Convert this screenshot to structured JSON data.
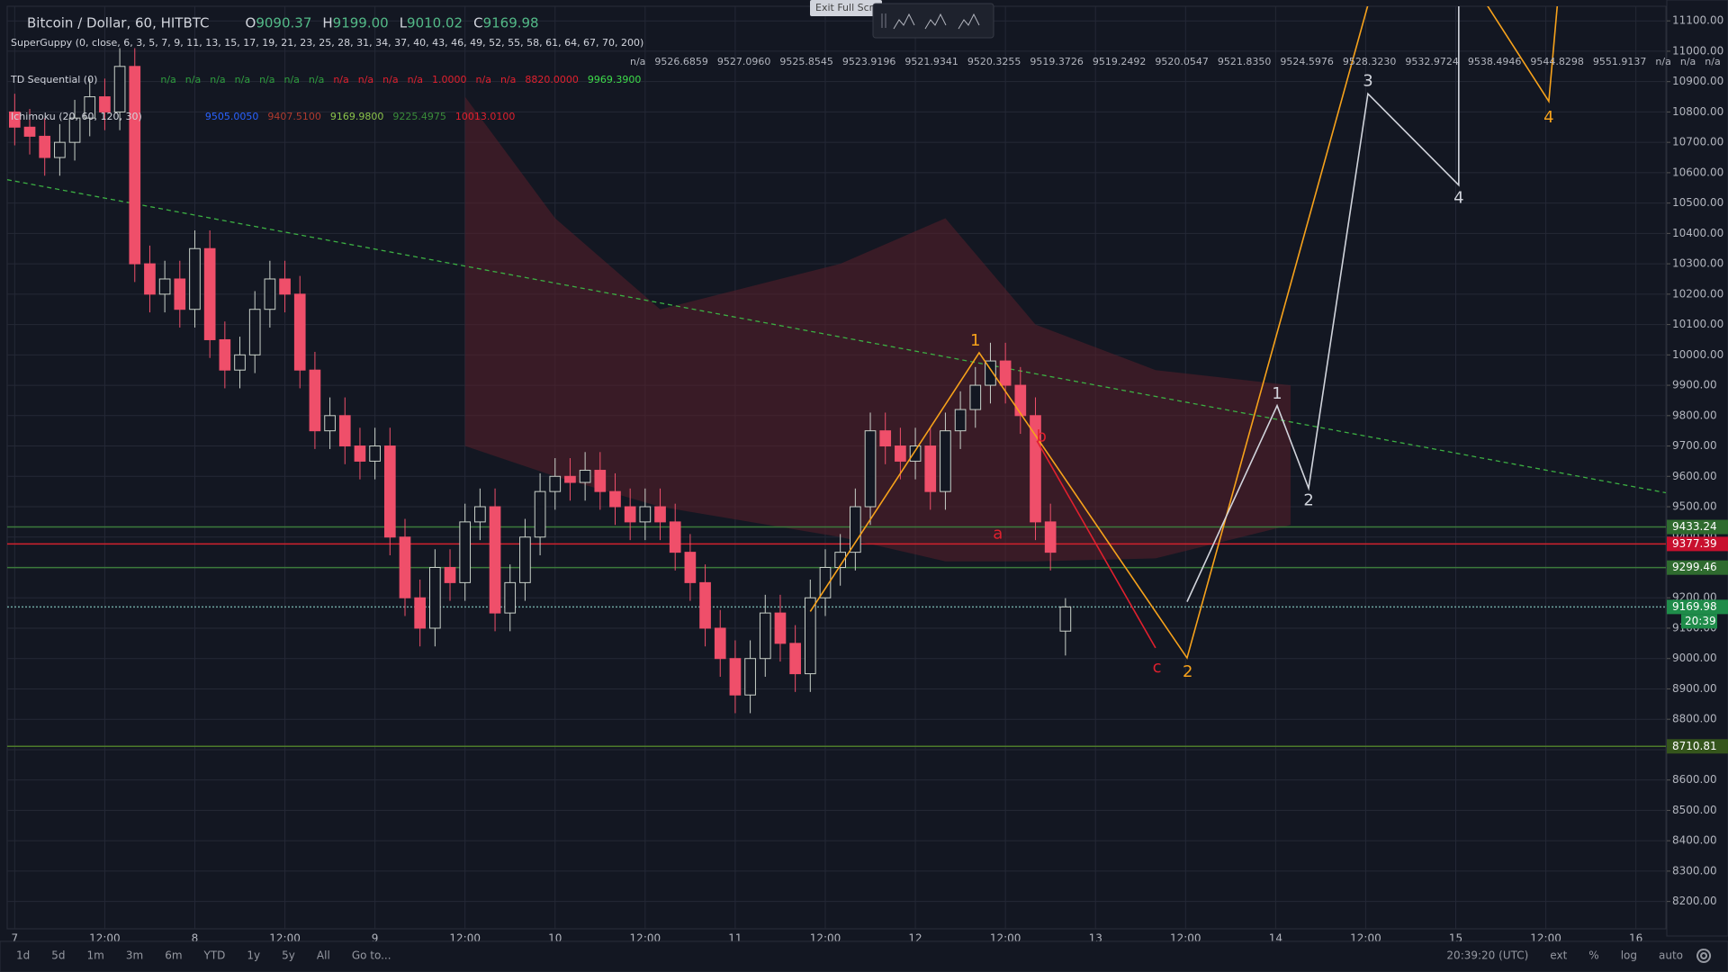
{
  "header": {
    "symbol": "Bitcoin / Dollar, 60, HITBTC",
    "ohlc": [
      {
        "key": "O",
        "value": "9090.37"
      },
      {
        "key": "H",
        "value": "9199.00"
      },
      {
        "key": "L",
        "value": "9010.02"
      },
      {
        "key": "C",
        "value": "9169.98"
      }
    ],
    "tooltip": "Exit Full Scre",
    "indicators": [
      {
        "name": "SuperGuppy (0, close, 6, 3, 5, 7, 9, 11, 13, 15, 17, 19, 21, 23, 25, 28, 31, 34, 37, 40, 43, 46, 49, 52, 55, 58, 61, 64, 67, 70, 200)",
        "color": "#b2b5be",
        "values": [
          "n/a",
          "9526.6859",
          "9527.0960",
          "9525.8545",
          "9523.9196",
          "9521.9341",
          "9520.3255",
          "9519.3726",
          "9519.2492",
          "9520.0547",
          "9521.8350",
          "9524.5976",
          "9528.3230",
          "9532.9724",
          "9538.4946",
          "9544.8298",
          "9551.9137",
          "n/a",
          "n/a",
          "n/a",
          "n/a"
        ]
      },
      {
        "name": "TD Sequential (0)",
        "color": "#2e9e3e",
        "values": [
          "n/a",
          "n/a",
          "n/a",
          "n/a",
          "n/a",
          "n/a",
          "n/a",
          "n/a",
          "n/a",
          "n/a",
          "n/a",
          "1.0000",
          "n/a",
          "n/a",
          "8820.0000",
          "9969.3900"
        ],
        "colors": [
          "#2e9e3e",
          "#2e9e3e",
          "#2e9e3e",
          "#2e9e3e",
          "#2e9e3e",
          "#2e9e3e",
          "#2e9e3e",
          "#e0202e",
          "#e0202e",
          "#e0202e",
          "#e0202e",
          "#e0202e",
          "#e0202e",
          "#e0202e",
          "#e0202e",
          "#3ddc4a"
        ]
      },
      {
        "name": "Ichimoku (20, 60, 120, 30)",
        "color": "#b2b5be",
        "values": [
          "9505.0050",
          "9407.5100",
          "9169.9800",
          "9225.4975",
          "10013.0100"
        ],
        "colors": [
          "#2962ff",
          "#b03a2e",
          "#8bc34a",
          "#3a8c3a",
          "#e0202e"
        ]
      }
    ]
  },
  "chart_data": {
    "type": "candlestick",
    "x": [
      0,
      2,
      4,
      6,
      8,
      10,
      12,
      14,
      16,
      18,
      20,
      22,
      24,
      26,
      28,
      30,
      32,
      34,
      36,
      38,
      40,
      42,
      44,
      46,
      48,
      50,
      52,
      54,
      56,
      58,
      60,
      62,
      64,
      66,
      68,
      70,
      72,
      74,
      76,
      78,
      80,
      82,
      84,
      86,
      88,
      90,
      92,
      94,
      96,
      98,
      100,
      102,
      104,
      106,
      108,
      110,
      112,
      114,
      116,
      118,
      120,
      122,
      124,
      126,
      128,
      130,
      132,
      134,
      136,
      138,
      140
    ],
    "open": [
      10800,
      10750,
      10720,
      10650,
      10700,
      10780,
      10850,
      10800,
      10950,
      10300,
      10200,
      10250,
      10150,
      10350,
      10050,
      9950,
      10000,
      10150,
      10250,
      10200,
      9950,
      9750,
      9800,
      9700,
      9650,
      9700,
      9400,
      9200,
      9100,
      9300,
      9250,
      9450,
      9500,
      9150,
      9250,
      9400,
      9550,
      9600,
      9580,
      9620,
      9550,
      9500,
      9450,
      9500,
      9450,
      9350,
      9250,
      9100,
      9000,
      8880,
      9000,
      9150,
      9050,
      8950,
      9200,
      9300,
      9350,
      9500,
      9750,
      9700,
      9650,
      9700,
      9550,
      9750,
      9820,
      9900,
      9980,
      9900,
      9800,
      9450,
      9090.37
    ],
    "high": [
      10860,
      10810,
      10780,
      10760,
      10840,
      10910,
      10910,
      11010,
      11010,
      10360,
      10310,
      10310,
      10410,
      10410,
      10110,
      10060,
      10210,
      10310,
      10310,
      10260,
      10010,
      9860,
      9860,
      9760,
      9760,
      9760,
      9460,
      9260,
      9360,
      9360,
      9510,
      9560,
      9560,
      9310,
      9460,
      9610,
      9660,
      9660,
      9680,
      9680,
      9610,
      9560,
      9560,
      9560,
      9510,
      9410,
      9310,
      9160,
      9060,
      9060,
      9210,
      9210,
      9110,
      9260,
      9360,
      9410,
      9560,
      9810,
      9810,
      9760,
      9760,
      9760,
      9810,
      9880,
      9960,
      10040,
      10040,
      9960,
      9860,
      9510,
      9199
    ],
    "low": [
      10690,
      10660,
      10590,
      10590,
      10640,
      10720,
      10740,
      10740,
      10240,
      10140,
      10140,
      10090,
      10090,
      9990,
      9890,
      9890,
      9940,
      10090,
      10140,
      9890,
      9690,
      9690,
      9640,
      9590,
      9590,
      9340,
      9140,
      9040,
      9040,
      9190,
      9190,
      9390,
      9090,
      9090,
      9190,
      9340,
      9490,
      9520,
      9520,
      9490,
      9440,
      9390,
      9390,
      9390,
      9290,
      9190,
      9040,
      8940,
      8820,
      8820,
      8940,
      8990,
      8890,
      8890,
      9140,
      9240,
      9290,
      9440,
      9640,
      9590,
      9590,
      9490,
      9490,
      9690,
      9760,
      9840,
      9840,
      9740,
      9390,
      9290,
      9010.02
    ],
    "close": [
      10750,
      10720,
      10650,
      10700,
      10780,
      10850,
      10800,
      10950,
      10300,
      10200,
      10250,
      10150,
      10350,
      10050,
      9950,
      10000,
      10150,
      10250,
      10200,
      9950,
      9750,
      9800,
      9700,
      9650,
      9700,
      9400,
      9200,
      9100,
      9300,
      9250,
      9450,
      9500,
      9150,
      9250,
      9400,
      9550,
      9600,
      9580,
      9620,
      9550,
      9500,
      9450,
      9500,
      9450,
      9350,
      9250,
      9100,
      9000,
      8880,
      9000,
      9150,
      9050,
      8950,
      9200,
      9300,
      9350,
      9500,
      9750,
      9700,
      9650,
      9700,
      9550,
      9750,
      9820,
      9900,
      9980,
      9900,
      9800,
      9450,
      9350,
      9169.98
    ],
    "up_color": "#c9d1c9",
    "down_color": "#ef4f6a",
    "grid": true,
    "grid_color": "#242836",
    "xlim": [
      -1,
      220
    ],
    "ylim": [
      8110,
      11148
    ],
    "xticks": [
      {
        "value": 0,
        "label": "7"
      },
      {
        "value": 12,
        "label": "12:00"
      },
      {
        "value": 24,
        "label": "8"
      },
      {
        "value": 36,
        "label": "12:00"
      },
      {
        "value": 48,
        "label": "9"
      },
      {
        "value": 60,
        "label": "12:00"
      },
      {
        "value": 72,
        "label": "10"
      },
      {
        "value": 84,
        "label": "12:00"
      },
      {
        "value": 96,
        "label": "11"
      },
      {
        "value": 108,
        "label": "12:00"
      },
      {
        "value": 120,
        "label": "12"
      },
      {
        "value": 132,
        "label": "12:00"
      },
      {
        "value": 144,
        "label": "13"
      },
      {
        "value": 156,
        "label": "12:00"
      },
      {
        "value": 168,
        "label": "14"
      },
      {
        "value": 180,
        "label": "12:00"
      },
      {
        "value": 192,
        "label": "15"
      },
      {
        "value": 204,
        "label": "12:00"
      },
      {
        "value": 216,
        "label": "16"
      }
    ],
    "yticks": [
      {
        "value": 8200,
        "label": "8200.00"
      },
      {
        "value": 8300,
        "label": "8300.00"
      },
      {
        "value": 8400,
        "label": "8400.00"
      },
      {
        "value": 8500,
        "label": "8500.00"
      },
      {
        "value": 8600,
        "label": "8600.00"
      },
      {
        "value": 8700,
        "label": "8700.00"
      },
      {
        "value": 8800,
        "label": "8800.00"
      },
      {
        "value": 8900,
        "label": "8900.00"
      },
      {
        "value": 9000,
        "label": "9000.00"
      },
      {
        "value": 9100,
        "label": "9100.00"
      },
      {
        "value": 9200,
        "label": "9200.00"
      },
      {
        "value": 9300,
        "label": "9300.00"
      },
      {
        "value": 9400,
        "label": "9400.00"
      },
      {
        "value": 9500,
        "label": "9500.00"
      },
      {
        "value": 9600,
        "label": "9600.00"
      },
      {
        "value": 9700,
        "label": "9700.00"
      },
      {
        "value": 9800,
        "label": "9800.00"
      },
      {
        "value": 9900,
        "label": "9900.00"
      },
      {
        "value": 10000,
        "label": "10000.00"
      },
      {
        "value": 10100,
        "label": "10100.00"
      },
      {
        "value": 10200,
        "label": "10200.00"
      },
      {
        "value": 10300,
        "label": "10300.00"
      },
      {
        "value": 10400,
        "label": "10400.00"
      },
      {
        "value": 10500,
        "label": "10500.00"
      },
      {
        "value": 10600,
        "label": "10600.00"
      },
      {
        "value": 10700,
        "label": "10700.00"
      },
      {
        "value": 10800,
        "label": "10800.00"
      },
      {
        "value": 10900,
        "label": "10900.00"
      },
      {
        "value": 11000,
        "label": "11000.00"
      },
      {
        "value": 11100,
        "label": "11100.00"
      }
    ],
    "cloud": {
      "color": "#5a1f2a",
      "x": [
        60,
        72,
        86,
        110,
        124,
        136,
        152,
        170
      ],
      "upper": [
        10850,
        10450,
        10150,
        10300,
        10450,
        10100,
        9950,
        9900
      ],
      "lower": [
        9700,
        9600,
        9500,
        9400,
        9320,
        9320,
        9330,
        9440
      ]
    },
    "trendline": {
      "color": "#3cb043",
      "x": [
        -1,
        220
      ],
      "y": [
        10577,
        9546
      ]
    },
    "levels": [
      {
        "value": 9433.24,
        "color": "#2f6b2f",
        "line": "#3c7a3c"
      },
      {
        "value": 9377.39,
        "color": "#c8102e",
        "line": "#d2222d"
      },
      {
        "value": 9299.46,
        "color": "#2f6b2f",
        "line": "#3c7a3c"
      },
      {
        "value": 9169.98,
        "color": "#1f8c4a",
        "line": "#6fa5a0",
        "countdown": "20:39"
      },
      {
        "value": 8710.81,
        "color": "#35551c",
        "line": "#4c7a2a"
      }
    ],
    "drawings": [
      {
        "color": "#f7a21b",
        "x": [
          106,
          128.5,
          156.2,
          180.5,
          null,
          195.7,
          204.4,
          205.6
        ],
        "y": [
          9155,
          10007,
          9002,
          11170,
          null,
          11170,
          10835,
          11170
        ],
        "labels": [
          {
            "text": "1",
            "x": 128,
            "y": 10045
          },
          {
            "text": "2",
            "x": 156.3,
            "y": 8955
          },
          {
            "text": "4",
            "x": 204.4,
            "y": 10780
          }
        ]
      },
      {
        "color": "#d1d4dc",
        "x": [
          156.2,
          168.2,
          172.4,
          180.3,
          192.4,
          192.4
        ],
        "y": [
          9187,
          9833,
          9561,
          10860,
          10559,
          11170
        ],
        "labels": [
          {
            "text": "1",
            "x": 168.2,
            "y": 9870
          },
          {
            "text": "2",
            "x": 172.4,
            "y": 9520
          },
          {
            "text": "3",
            "x": 180.3,
            "y": 10900
          },
          {
            "text": "4",
            "x": 192.4,
            "y": 10515
          }
        ]
      },
      {
        "color": "#e0202e",
        "x": [
          136.2,
          152
        ],
        "y": [
          9717,
          9035
        ],
        "labels": [
          {
            "text": "a",
            "x": 131,
            "y": 9410
          },
          {
            "text": "b",
            "x": 136.8,
            "y": 9730
          },
          {
            "text": "c",
            "x": 152.2,
            "y": 8970
          }
        ]
      }
    ]
  },
  "toolbar": {
    "ranges": [
      "1d",
      "5d",
      "1m",
      "3m",
      "6m",
      "YTD",
      "1y",
      "5y",
      "All",
      "Go to..."
    ],
    "right": [
      "20:39:20 (UTC)",
      "ext",
      "%",
      "log",
      "auto"
    ]
  }
}
